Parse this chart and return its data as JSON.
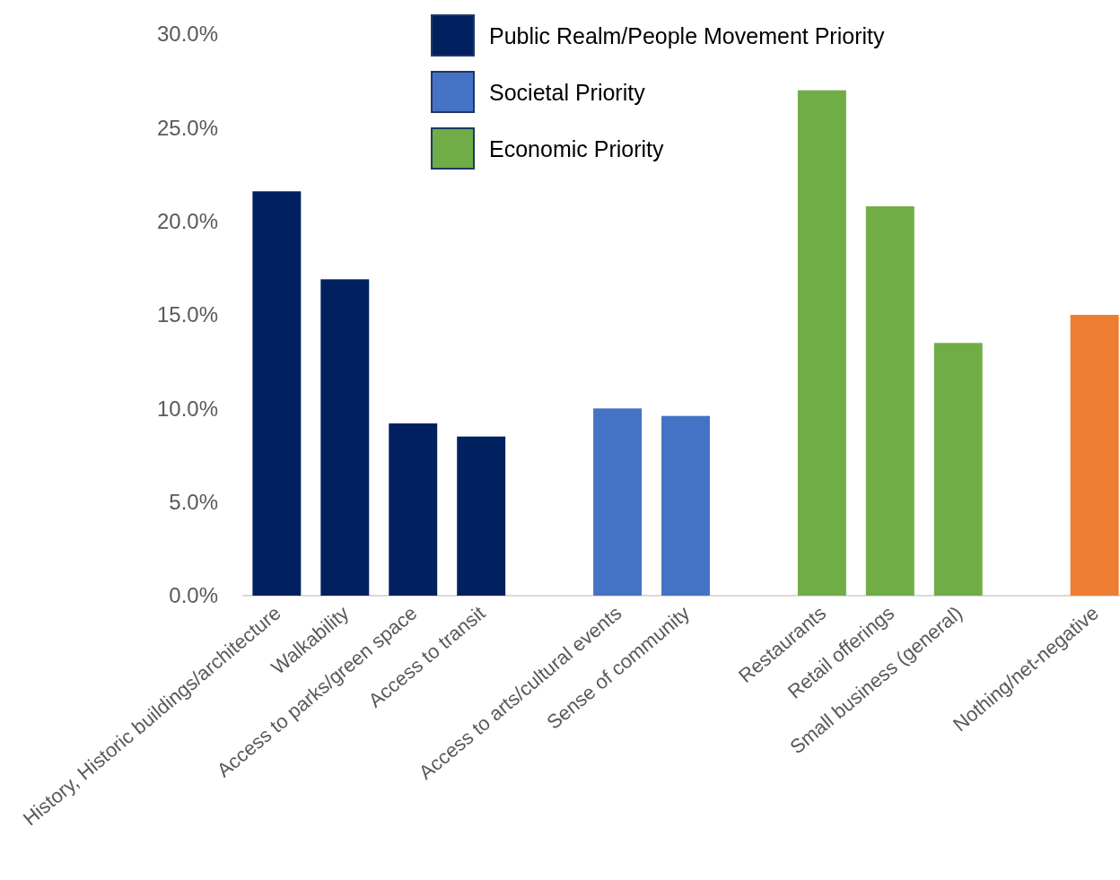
{
  "chart_data": {
    "type": "bar",
    "categories": [
      "History, Historic buildings/architecture",
      "Walkability",
      "Access to parks/green space",
      "Access to transit",
      null,
      "Access to arts/cultural events",
      "Sense of community",
      null,
      "Restaurants",
      "Retail offerings",
      "Small business (general)",
      null,
      "Nothing/net-negative"
    ],
    "series": [
      {
        "name": "Public Realm/People Movement Priority",
        "color": "#002060",
        "values": [
          21.6,
          16.9,
          9.2,
          8.5,
          null,
          null,
          null,
          null,
          null,
          null,
          null,
          null,
          null
        ]
      },
      {
        "name": "Societal Priority",
        "color": "#4472c4",
        "values": [
          null,
          null,
          null,
          null,
          null,
          10.0,
          9.6,
          null,
          null,
          null,
          null,
          null,
          null
        ]
      },
      {
        "name": "Economic Priority",
        "color": "#70ad47",
        "values": [
          null,
          null,
          null,
          null,
          null,
          null,
          null,
          null,
          27.0,
          20.8,
          13.5,
          null,
          null
        ]
      },
      {
        "color": "#ed7d31",
        "values": [
          null,
          null,
          null,
          null,
          null,
          null,
          null,
          null,
          null,
          null,
          null,
          null,
          15.0
        ]
      }
    ],
    "ylim": [
      0,
      30
    ],
    "yticks": [
      {
        "value": 0,
        "label": "0.0%"
      },
      {
        "value": 5,
        "label": "5.0%"
      },
      {
        "value": 10,
        "label": "10.0%"
      },
      {
        "value": 15,
        "label": "15.0%"
      },
      {
        "value": 20,
        "label": "20.0%"
      },
      {
        "value": 25,
        "label": "25.0%"
      },
      {
        "value": 30,
        "label": "30.0%"
      }
    ],
    "legend": "top"
  }
}
